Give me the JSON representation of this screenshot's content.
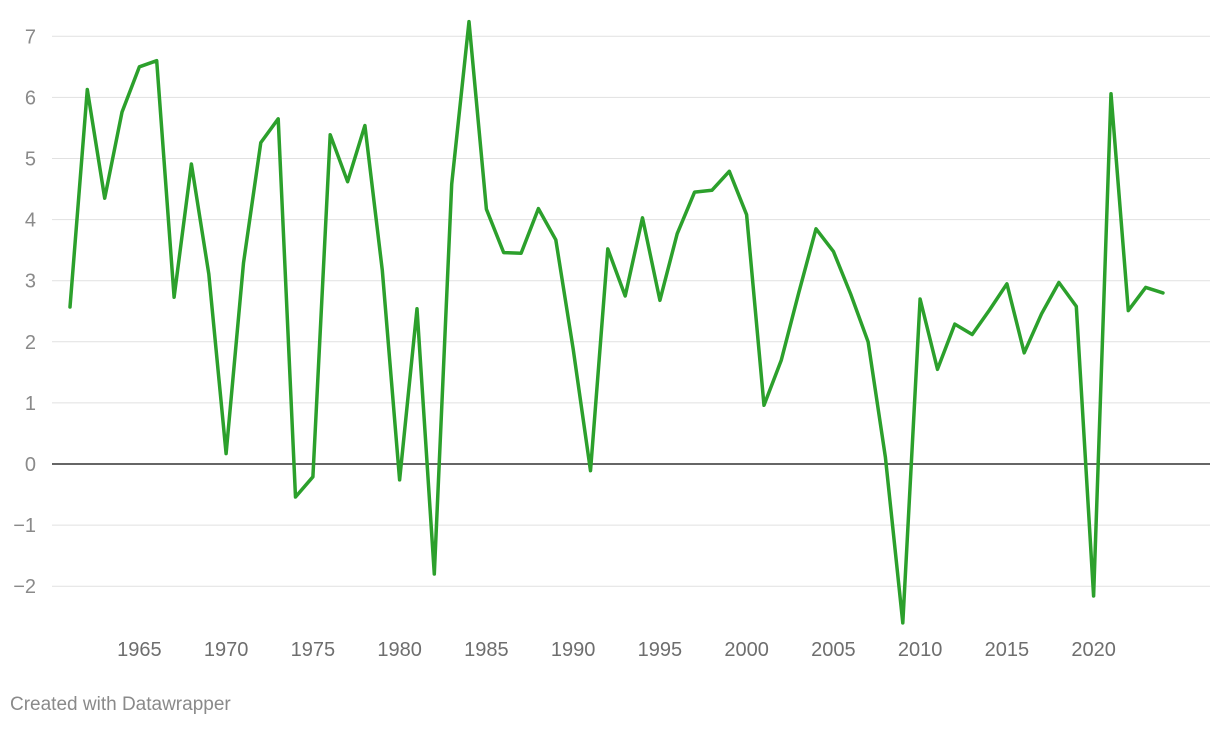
{
  "chart_data": {
    "type": "line",
    "title": "",
    "xlabel": "",
    "ylabel": "",
    "x_ticks": [
      1965,
      1970,
      1975,
      1980,
      1985,
      1990,
      1995,
      2000,
      2005,
      2010,
      2015,
      2020
    ],
    "y_ticks": [
      -2,
      -1,
      0,
      1,
      2,
      3,
      4,
      5,
      6,
      7
    ],
    "ylim": [
      -2.6,
      7.3
    ],
    "xlim": [
      1961,
      2024
    ],
    "grid": true,
    "series": [
      {
        "color": "#2ca02c",
        "x": [
          1961,
          1962,
          1963,
          1964,
          1965,
          1966,
          1967,
          1968,
          1969,
          1970,
          1971,
          1972,
          1973,
          1974,
          1975,
          1976,
          1977,
          1978,
          1979,
          1980,
          1981,
          1982,
          1983,
          1984,
          1985,
          1986,
          1987,
          1988,
          1989,
          1990,
          1991,
          1992,
          1993,
          1994,
          1995,
          1996,
          1997,
          1998,
          1999,
          2000,
          2001,
          2002,
          2003,
          2004,
          2005,
          2006,
          2007,
          2008,
          2009,
          2010,
          2011,
          2012,
          2013,
          2014,
          2015,
          2016,
          2017,
          2018,
          2019,
          2020,
          2021,
          2022,
          2023,
          2024
        ],
        "y": [
          2.57,
          6.13,
          4.35,
          5.76,
          6.5,
          6.6,
          2.73,
          4.91,
          3.11,
          0.17,
          3.29,
          5.26,
          5.65,
          -0.54,
          -0.21,
          5.39,
          4.62,
          5.54,
          3.17,
          -0.26,
          2.54,
          -1.8,
          4.58,
          7.24,
          4.17,
          3.46,
          3.45,
          4.18,
          3.67,
          1.89,
          -0.11,
          3.52,
          2.75,
          4.03,
          2.68,
          3.77,
          4.45,
          4.48,
          4.79,
          4.08,
          0.96,
          1.7,
          2.8,
          3.85,
          3.48,
          2.78,
          2.0,
          0.11,
          -2.6,
          2.7,
          1.55,
          2.29,
          2.12,
          2.52,
          2.95,
          1.82,
          2.46,
          2.97,
          2.58,
          -2.16,
          6.06,
          2.51,
          2.89,
          2.8
        ]
      }
    ]
  },
  "footer": {
    "credit": "Created with Datawrapper"
  }
}
